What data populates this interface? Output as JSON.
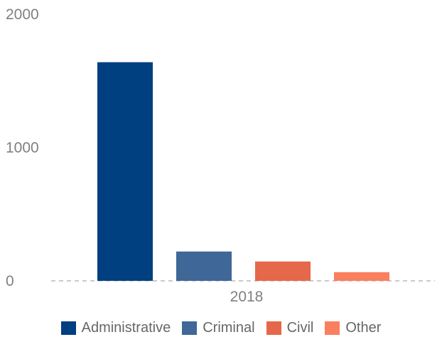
{
  "chart_data": {
    "type": "bar",
    "categories": [
      "2018"
    ],
    "series": [
      {
        "name": "Administrative",
        "values": [
          1640
        ],
        "color": "#003f80"
      },
      {
        "name": "Criminal",
        "values": [
          220
        ],
        "color": "#3f6797"
      },
      {
        "name": "Civil",
        "values": [
          145
        ],
        "color": "#e5684a"
      },
      {
        "name": "Other",
        "values": [
          65
        ],
        "color": "#fa7f5e"
      }
    ],
    "y_ticks": [
      "0",
      "1000",
      "2000"
    ],
    "ylim": [
      0,
      2000
    ],
    "legend_position": "bottom",
    "grid": false,
    "zero_line": "dashed"
  }
}
